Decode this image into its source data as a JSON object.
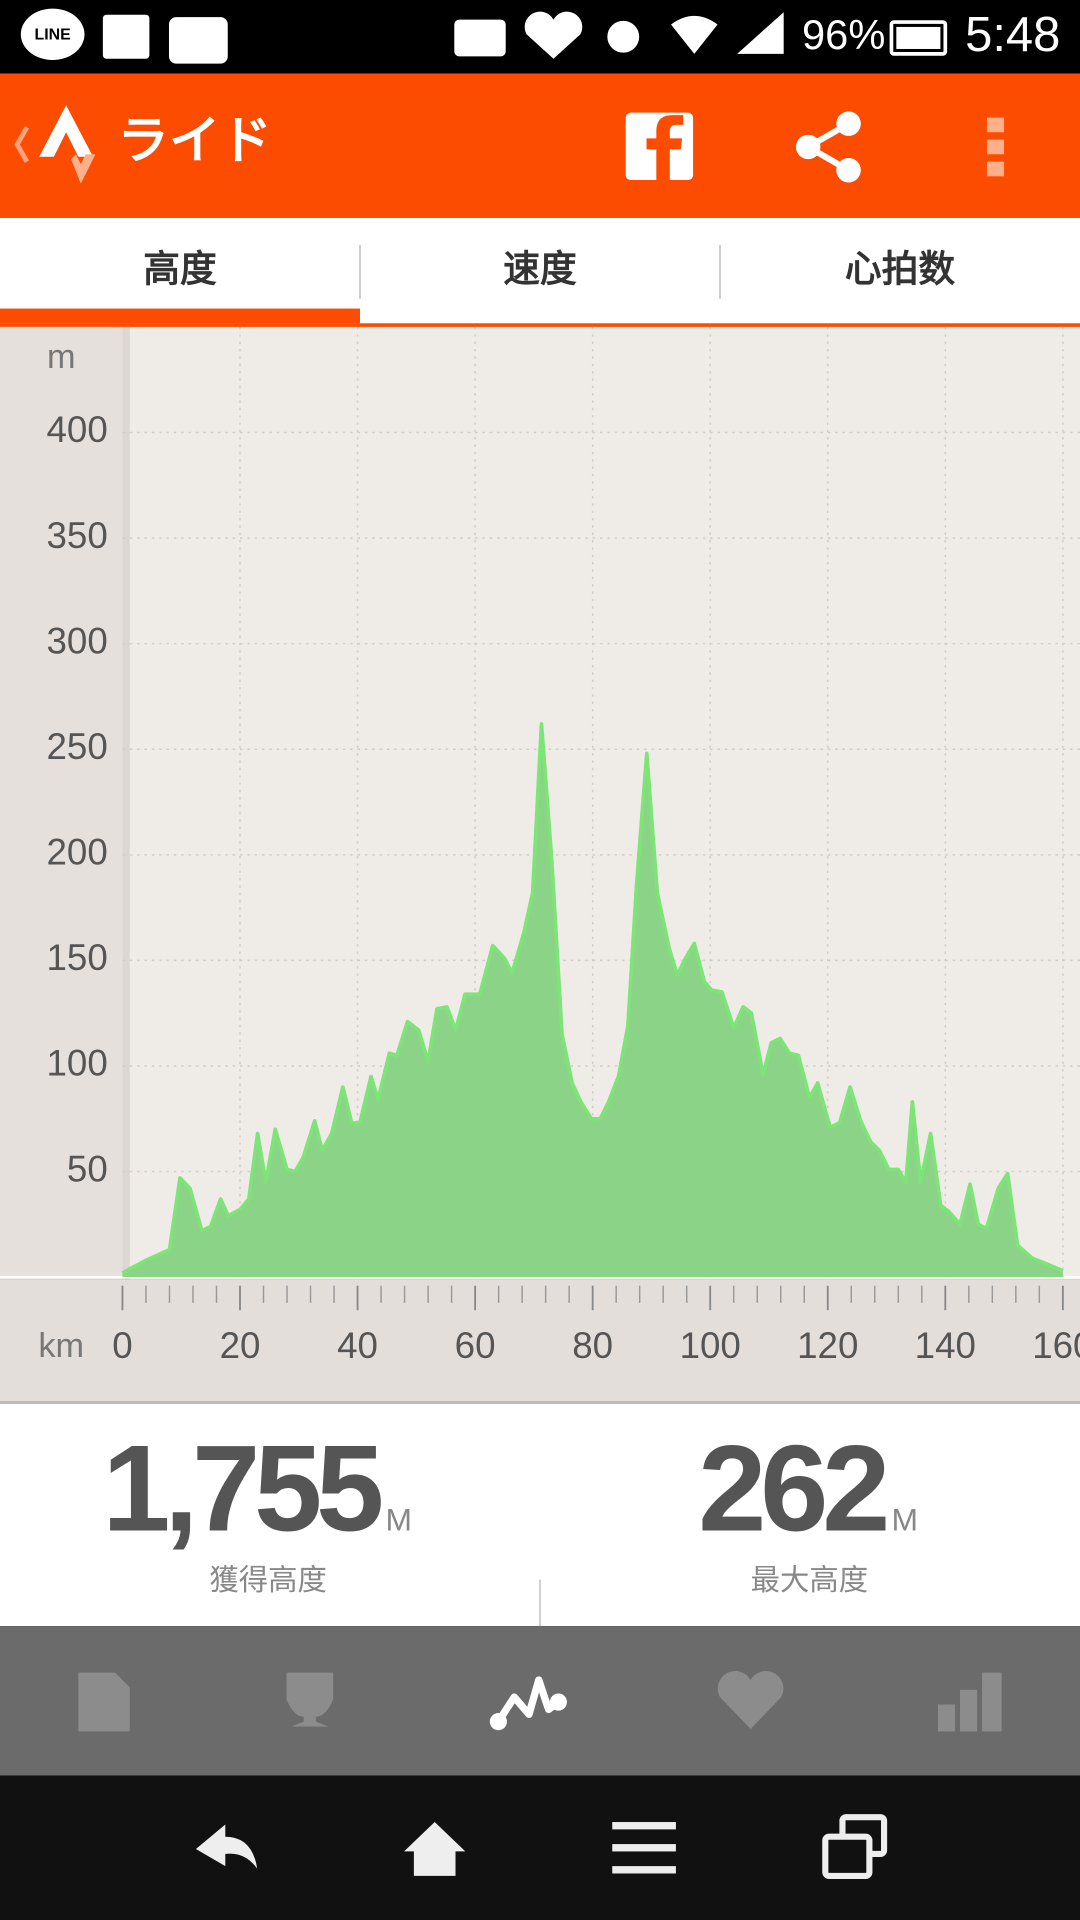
{
  "status_bar": {
    "app_icon": "LINE",
    "battery": "96%",
    "time": "5:48"
  },
  "app_bar": {
    "title": "ライド"
  },
  "tabs": [
    "高度",
    "速度",
    "心拍数"
  ],
  "chart_data": {
    "type": "area",
    "y_unit": "m",
    "x_unit": "km",
    "x": [
      0,
      2,
      4,
      8,
      9.8,
      11.5,
      13.5,
      15,
      16.7,
      18,
      20,
      21.5,
      23,
      24.4,
      26,
      28,
      29.4,
      30.8,
      32.7,
      34,
      35.6,
      37.5,
      39,
      40.4,
      42.3,
      43.5,
      45.4,
      46.7,
      48.5,
      50.4,
      52,
      53.5,
      55.2,
      56.7,
      58.3,
      60.8,
      63,
      65,
      66.3,
      68.3,
      69.8,
      71.3,
      73,
      74.8,
      76.5,
      78,
      79.8,
      81.3,
      82.7,
      84.4,
      86,
      87.5,
      89.2,
      91,
      93,
      94.4,
      95.8,
      97.3,
      99,
      100.2,
      102,
      104,
      105.6,
      107,
      109,
      110.4,
      111.9,
      113.5,
      115,
      116.9,
      118.3,
      120.4,
      122,
      123.8,
      125.6,
      127.3,
      128.8,
      130.4,
      132,
      133.3,
      134.4,
      135.8,
      137.5,
      139.2,
      140.6,
      142.5,
      144.2,
      145.6,
      147,
      149,
      150.6,
      152.3,
      154.8,
      157.5,
      160
    ],
    "values": [
      2,
      5,
      8,
      13,
      47,
      42,
      22,
      24,
      37,
      29,
      32,
      37,
      68,
      45,
      70,
      51,
      50,
      57,
      74,
      60,
      68,
      90,
      73,
      73,
      95,
      84,
      106,
      105,
      121,
      117,
      102,
      127,
      128,
      117,
      134,
      134,
      157,
      151,
      144,
      163,
      182,
      262,
      199,
      115,
      92,
      83,
      75,
      75,
      83,
      95,
      119,
      187,
      248,
      182,
      156,
      143,
      151,
      158,
      140,
      136,
      135,
      118,
      128,
      125,
      96,
      111,
      113,
      106,
      105,
      85,
      92,
      71,
      73,
      90,
      74,
      64,
      60,
      51,
      51,
      45,
      83,
      45,
      68,
      34,
      31,
      25,
      44,
      25,
      23,
      42,
      49,
      15,
      9,
      6,
      3
    ],
    "color": "#8bd386",
    "line_color": "#7de477",
    "xlim": [
      0,
      160
    ],
    "ylim": [
      0,
      450
    ],
    "xticks": [
      0,
      20,
      40,
      60,
      80,
      100,
      120,
      140,
      160
    ],
    "xminorticks": [
      4,
      8,
      12,
      16,
      24,
      28,
      32,
      36,
      44,
      48,
      52,
      56,
      64,
      68,
      72,
      76,
      84,
      88,
      92,
      96,
      104,
      108,
      112,
      116,
      124,
      128,
      132,
      136,
      144,
      148,
      152,
      156
    ],
    "yticks": [
      50,
      100,
      150,
      200,
      250,
      300,
      350,
      400
    ],
    "grid": true
  },
  "stats": [
    {
      "value": "1,755",
      "unit": "M",
      "label": "獲得高度"
    },
    {
      "value": "262",
      "unit": "M",
      "label": "最大高度"
    }
  ]
}
